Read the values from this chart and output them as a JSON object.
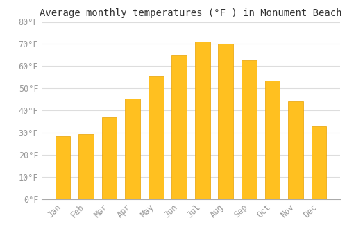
{
  "title": "Average monthly temperatures (°F ) in Monument Beach",
  "months": [
    "Jan",
    "Feb",
    "Mar",
    "Apr",
    "May",
    "Jun",
    "Jul",
    "Aug",
    "Sep",
    "Oct",
    "Nov",
    "Dec"
  ],
  "values": [
    28.5,
    29.5,
    37,
    45.5,
    55.5,
    65,
    71,
    70,
    62.5,
    53.5,
    44,
    33
  ],
  "bar_color": "#FFC020",
  "bar_edge_color": "#E8A000",
  "background_color": "#FFFFFF",
  "grid_color": "#DDDDDD",
  "ylim": [
    0,
    80
  ],
  "yticks": [
    0,
    10,
    20,
    30,
    40,
    50,
    60,
    70,
    80
  ],
  "ytick_labels": [
    "0°F",
    "10°F",
    "20°F",
    "30°F",
    "40°F",
    "50°F",
    "60°F",
    "70°F",
    "80°F"
  ],
  "tick_color": "#999999",
  "title_fontsize": 10,
  "tick_fontsize": 8.5,
  "font_family": "monospace",
  "bar_width": 0.65
}
